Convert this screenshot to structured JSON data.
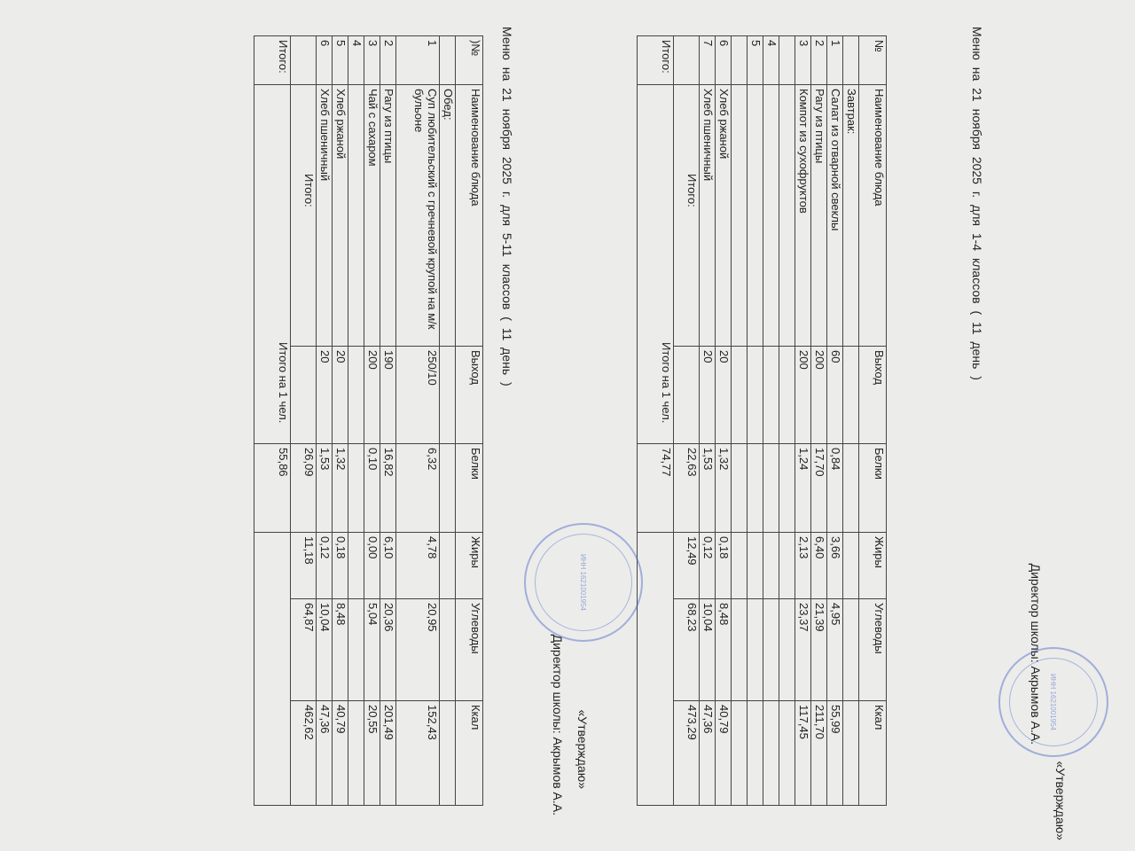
{
  "approval1": {
    "approved": "«Утверждаю»",
    "director": "Директор школы: Акрымов А.А."
  },
  "approval2": {
    "approved": "«Утверждаю»",
    "director": "Директор школы: Акрымов А.А."
  },
  "stamp_text": "ОГРН ИНН 1621001954 Республика Татарстан",
  "menu1": {
    "title": "Меню   на    21   ноября  2025  г. для 1-4 классов ( 11 день )",
    "headers": [
      "№",
      "Наименование блюда",
      "Выход",
      "Белки",
      "Жиры",
      "Углеводы",
      "Ккал"
    ],
    "rows": [
      [
        "",
        "Завтрак:",
        "",
        "",
        "",
        "",
        ""
      ],
      [
        "1",
        "Салат из отварной свеклы",
        "60",
        "0,84",
        "3,66",
        "4,95",
        "55,99"
      ],
      [
        "2",
        "Рагу из птицы",
        "200",
        "17,70",
        "6,40",
        "21,39",
        "211,70"
      ],
      [
        "3",
        "Компот из сухофруктов",
        "200",
        "1,24",
        "2,13",
        "23,37",
        "117,45"
      ],
      [
        "",
        "",
        "",
        "",
        "",
        "",
        ""
      ],
      [
        "4",
        "",
        "",
        "",
        "",
        "",
        ""
      ],
      [
        "5",
        "",
        "",
        "",
        "",
        "",
        ""
      ],
      [
        "",
        "",
        "",
        "",
        "",
        "",
        ""
      ],
      [
        "6",
        "Хлеб ржаной",
        "20",
        "1,32",
        "0,18",
        "8,48",
        "40,79"
      ],
      [
        "7",
        "Хлеб пшеничный",
        "20",
        "1,53",
        "0,12",
        "10,04",
        "47,36"
      ],
      [
        "",
        "Итого:",
        "",
        "22,63",
        "12,49",
        "68,23",
        "473,29"
      ]
    ],
    "total": {
      "label": "Итого:",
      "per_person_label": "Итого на 1 чел.",
      "value": "74,77"
    }
  },
  "menu2": {
    "title": "Меню    на    21    ноября    2025 г. для 5-11 классов  ( 11 день )",
    "headers": [
      ")№",
      "Наименование блюда",
      "Выход",
      "Белки",
      "Жиры",
      "Углеводы",
      "Ккал"
    ],
    "rows": [
      [
        "",
        "Обед:",
        "",
        "",
        "",
        "",
        ""
      ],
      [
        "1",
        "Суп любительский с гречневой крупой на м/к бульоне",
        "250/10",
        "6,32",
        "4,78",
        "20,95",
        "152,43"
      ],
      [
        "2",
        "Рагу из птицы",
        "190",
        "16,82",
        "6,10",
        "20,36",
        "201,49"
      ],
      [
        "3",
        "Чай с сахаром",
        "200",
        "0,10",
        "0,00",
        "5,04",
        "20,55"
      ],
      [
        "4",
        "",
        "",
        "",
        "",
        "",
        ""
      ],
      [
        "5",
        "Хлеб ржаной",
        "20",
        "1,32",
        "0,18",
        "8,48",
        "40,79"
      ],
      [
        "6",
        "Хлеб пшеничный",
        "20",
        "1,53",
        "0,12",
        "10,04",
        "47,36"
      ],
      [
        "",
        "Итого:",
        "",
        "26,09",
        "11,18",
        "64,87",
        "462,62"
      ]
    ],
    "total": {
      "label": "Итого:",
      "per_person_label": "Итого на 1 чел.",
      "value": "55,86"
    }
  }
}
